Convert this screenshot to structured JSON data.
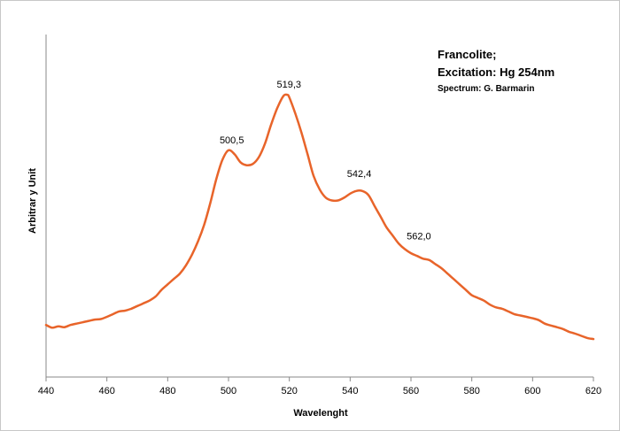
{
  "chart_data": {
    "type": "line",
    "title_lines": [
      "Francolite;",
      "Excitation:  Hg 254nm"
    ],
    "subtitle": "Spectrum: G. Barmarin",
    "xlabel": "Wavelenght",
    "ylabel": "Arbitrar y Unit",
    "xlim": [
      440,
      620
    ],
    "ylim": [
      0,
      1
    ],
    "xticks": [
      440,
      460,
      480,
      500,
      520,
      540,
      560,
      580,
      600,
      620
    ],
    "grid": false,
    "legend": "none",
    "line_color": "#e8642a",
    "peak_labels": [
      {
        "x": 500.5,
        "y": 0.775,
        "text": "500,5"
      },
      {
        "x": 519.3,
        "y": 0.98,
        "text": "519,3"
      },
      {
        "x": 542.4,
        "y": 0.65,
        "text": "542,4"
      },
      {
        "x": 562.0,
        "y": 0.42,
        "text": "562,0"
      }
    ],
    "series": [
      {
        "x": [
          440,
          442,
          444,
          446,
          448,
          450,
          452,
          454,
          456,
          458,
          460,
          462,
          464,
          466,
          468,
          470,
          472,
          474,
          476,
          478,
          480,
          482,
          484,
          486,
          488,
          490,
          492,
          494,
          496,
          498,
          500,
          502,
          504,
          506,
          508,
          510,
          512,
          514,
          516,
          518,
          519.3,
          520,
          522,
          524,
          526,
          528,
          530,
          532,
          534,
          536,
          538,
          540,
          542,
          544,
          546,
          548,
          550,
          552,
          554,
          556,
          558,
          560,
          562,
          564,
          566,
          568,
          570,
          572,
          574,
          576,
          578,
          580,
          582,
          584,
          586,
          588,
          590,
          592,
          594,
          596,
          598,
          600,
          602,
          604,
          606,
          608,
          610,
          612,
          614,
          616,
          618,
          620
        ],
        "y": [
          0.13,
          0.12,
          0.125,
          0.122,
          0.13,
          0.135,
          0.14,
          0.145,
          0.15,
          0.152,
          0.16,
          0.17,
          0.18,
          0.183,
          0.19,
          0.2,
          0.21,
          0.22,
          0.235,
          0.26,
          0.28,
          0.3,
          0.32,
          0.35,
          0.39,
          0.44,
          0.5,
          0.58,
          0.67,
          0.74,
          0.775,
          0.76,
          0.73,
          0.72,
          0.725,
          0.75,
          0.8,
          0.87,
          0.93,
          0.975,
          0.98,
          0.97,
          0.91,
          0.84,
          0.76,
          0.68,
          0.63,
          0.6,
          0.59,
          0.59,
          0.6,
          0.615,
          0.625,
          0.625,
          0.61,
          0.57,
          0.53,
          0.49,
          0.46,
          0.43,
          0.41,
          0.395,
          0.385,
          0.375,
          0.37,
          0.355,
          0.34,
          0.32,
          0.3,
          0.28,
          0.26,
          0.24,
          0.23,
          0.22,
          0.205,
          0.195,
          0.19,
          0.18,
          0.17,
          0.165,
          0.16,
          0.155,
          0.148,
          0.135,
          0.128,
          0.122,
          0.115,
          0.105,
          0.098,
          0.09,
          0.082,
          0.078
        ]
      }
    ]
  }
}
